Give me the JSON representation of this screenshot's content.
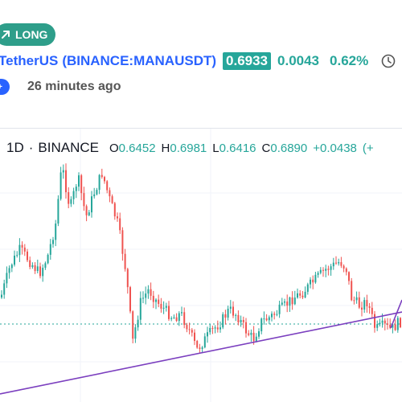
{
  "idea": {
    "badge_label": "LONG",
    "symbol_name": "TetherUS",
    "symbol_exchange": "(BINANCE:MANAUSDT)",
    "price": "0.6933",
    "change": "0.0043",
    "change_percent": "0.62%",
    "time_ago": "26 minutes ago"
  },
  "legend": {
    "interval": "1D",
    "separator": "·",
    "exchange": "BINANCE",
    "open_key": "O",
    "open_val": "0.6452",
    "high_key": "H",
    "high_val": "0.6981",
    "low_key": "L",
    "low_val": "0.6416",
    "close_key": "C",
    "close_val": "0.6890",
    "change_val": "+0.0438",
    "change_pct_partial": "(+"
  },
  "colors": {
    "up": "#26a69a",
    "down": "#ef5350",
    "trendline": "#7b3fbf",
    "price_line": "#26a69a",
    "badge": "#2e9e8a",
    "link": "#2962ff"
  }
}
